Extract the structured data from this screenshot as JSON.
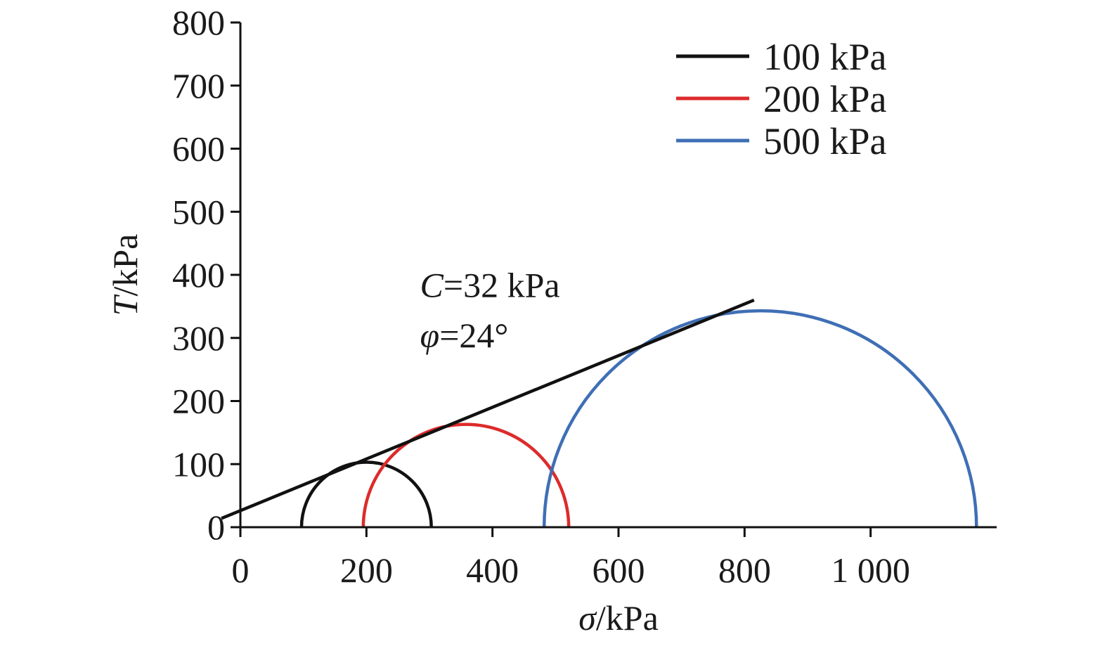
{
  "chart_data": {
    "type": "line",
    "title": "",
    "xlabel": {
      "symbol": "σ",
      "unit": "/kPa"
    },
    "ylabel": {
      "symbol": "T",
      "unit": "/kPa"
    },
    "xlim": [
      0,
      1200
    ],
    "ylim": [
      0,
      800
    ],
    "x_ticks": [
      0,
      200,
      400,
      600,
      800,
      1000
    ],
    "x_tick_labels": [
      "0",
      "200",
      "400",
      "600",
      "800",
      "1 000"
    ],
    "y_ticks": [
      0,
      100,
      200,
      300,
      400,
      500,
      600,
      700,
      800
    ],
    "y_tick_labels": [
      "0",
      "100",
      "200",
      "300",
      "400",
      "500",
      "600",
      "700",
      "800"
    ],
    "grid": false,
    "legend_position": "top-right",
    "series": [
      {
        "name": "100 kPa",
        "type": "semicircle",
        "center": 200,
        "radius": 103,
        "color": "#111111"
      },
      {
        "name": "200 kPa",
        "type": "semicircle",
        "center": 358,
        "radius": 163,
        "color": "#dd2b2b"
      },
      {
        "name": "500 kPa",
        "type": "semicircle",
        "center": 825,
        "radius": 343,
        "color": "#3f6fb5"
      }
    ],
    "envelope": {
      "x": [
        -30,
        815
      ],
      "y": [
        14,
        360
      ],
      "color": "#111111"
    },
    "annotations": [
      {
        "symbol": "C",
        "text": "=32 kPa",
        "x": 285,
        "y": 365
      },
      {
        "symbol": "φ",
        "text": "=24°",
        "x": 285,
        "y": 285
      }
    ]
  }
}
